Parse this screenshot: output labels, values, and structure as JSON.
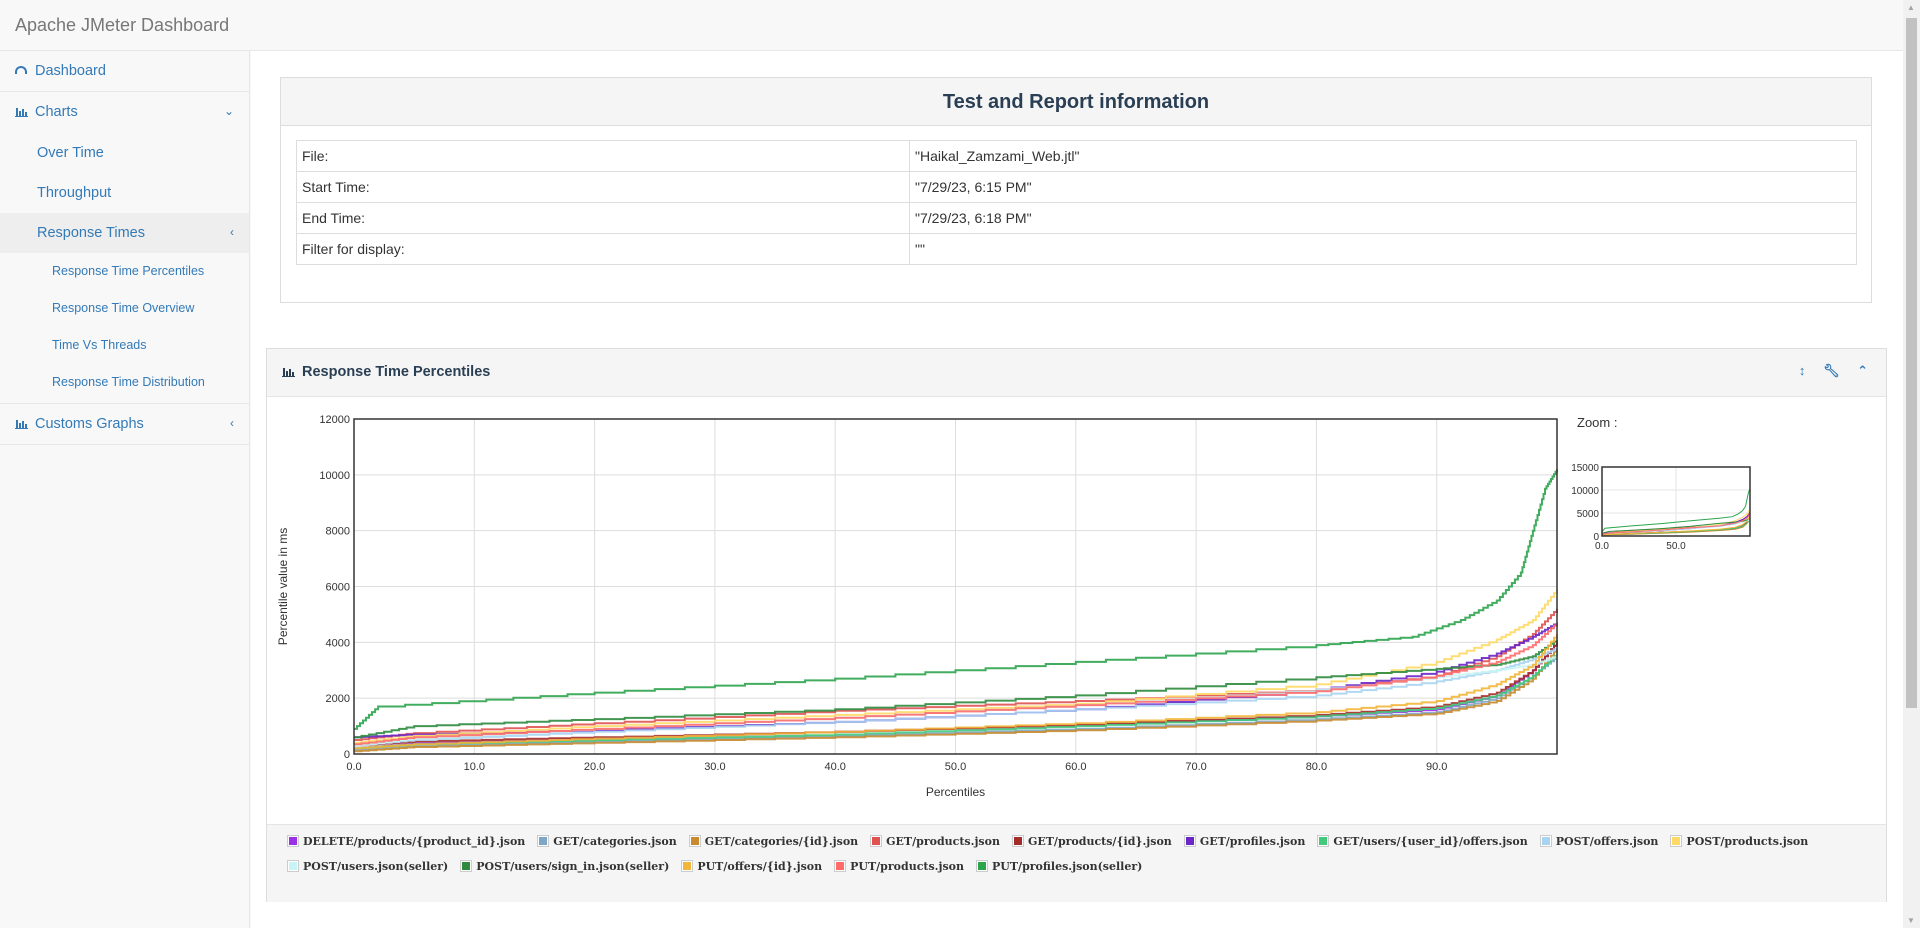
{
  "app": {
    "title": "Apache JMeter Dashboard"
  },
  "sidebar": {
    "items": [
      {
        "label": "Dashboard"
      },
      {
        "label": "Charts"
      },
      {
        "label": "Over Time"
      },
      {
        "label": "Throughput"
      },
      {
        "label": "Response Times"
      },
      {
        "label": "Response Time Percentiles"
      },
      {
        "label": "Response Time Overview"
      },
      {
        "label": "Time Vs Threads"
      },
      {
        "label": "Response Time Distribution"
      },
      {
        "label": "Customs Graphs"
      }
    ]
  },
  "info": {
    "title": "Test and Report information",
    "rows": [
      {
        "label": "File:",
        "value": "\"Haikal_Zamzami_Web.jtl\""
      },
      {
        "label": "Start Time:",
        "value": "\"7/29/23, 6:15 PM\""
      },
      {
        "label": "End Time:",
        "value": "\"7/29/23, 6:18 PM\""
      },
      {
        "label": "Filter for display:",
        "value": "\"\""
      }
    ]
  },
  "percentiles_panel": {
    "title": "Response Time Percentiles",
    "zoom_label": "Zoom :"
  },
  "colors": {
    "accent": "#337ab7",
    "header_text": "#2a3f54"
  },
  "chart_data": {
    "type": "line",
    "xlabel": "Percentiles",
    "ylabel": "Percentile value in ms",
    "xlim": [
      0,
      100
    ],
    "ylim": [
      0,
      12000
    ],
    "x_ticks": [
      "0.0",
      "10.0",
      "20.0",
      "30.0",
      "40.0",
      "50.0",
      "60.0",
      "70.0",
      "80.0",
      "90.0"
    ],
    "y_ticks": [
      "0",
      "2000",
      "4000",
      "6000",
      "8000",
      "10000",
      "12000"
    ],
    "grid": true,
    "legend_position": "bottom",
    "series": [
      {
        "name": "DELETE/products/{product_id}.json",
        "color": "#9b30e6",
        "values": [
          [
            0,
            200
          ],
          [
            5,
            380
          ],
          [
            20,
            550
          ],
          [
            40,
            800
          ],
          [
            60,
            1050
          ],
          [
            80,
            1350
          ],
          [
            90,
            1600
          ],
          [
            95,
            2100
          ],
          [
            98,
            3000
          ],
          [
            100,
            4000
          ]
        ]
      },
      {
        "name": "GET/categories.json",
        "color": "#7ea6c6",
        "values": [
          [
            0,
            150
          ],
          [
            5,
            300
          ],
          [
            20,
            450
          ],
          [
            40,
            650
          ],
          [
            60,
            900
          ],
          [
            80,
            1250
          ],
          [
            90,
            1500
          ],
          [
            95,
            2000
          ],
          [
            98,
            2800
          ],
          [
            100,
            3500
          ]
        ]
      },
      {
        "name": "GET/categories/{id}.json",
        "color": "#c78a2e",
        "values": [
          [
            0,
            100
          ],
          [
            5,
            250
          ],
          [
            20,
            400
          ],
          [
            40,
            600
          ],
          [
            60,
            850
          ],
          [
            80,
            1200
          ],
          [
            90,
            1450
          ],
          [
            95,
            1900
          ],
          [
            98,
            2700
          ],
          [
            100,
            3800
          ]
        ]
      },
      {
        "name": "GET/products.json",
        "color": "#e05252",
        "values": [
          [
            0,
            500
          ],
          [
            5,
            750
          ],
          [
            20,
            1100
          ],
          [
            40,
            1550
          ],
          [
            60,
            1900
          ],
          [
            80,
            2300
          ],
          [
            90,
            2800
          ],
          [
            95,
            3500
          ],
          [
            98,
            4300
          ],
          [
            100,
            5200
          ]
        ]
      },
      {
        "name": "GET/products/{id}.json",
        "color": "#a52a2a",
        "values": [
          [
            0,
            300
          ],
          [
            5,
            450
          ],
          [
            20,
            600
          ],
          [
            40,
            800
          ],
          [
            60,
            1050
          ],
          [
            80,
            1400
          ],
          [
            90,
            1700
          ],
          [
            95,
            2200
          ],
          [
            98,
            3000
          ],
          [
            100,
            4000
          ]
        ]
      },
      {
        "name": "GET/profiles.json",
        "color": "#6a26c7",
        "values": [
          [
            0,
            600
          ],
          [
            5,
            700
          ],
          [
            20,
            850
          ],
          [
            40,
            1150
          ],
          [
            60,
            1600
          ],
          [
            80,
            2300
          ],
          [
            90,
            2950
          ],
          [
            95,
            3600
          ],
          [
            98,
            4200
          ],
          [
            100,
            4700
          ]
        ]
      },
      {
        "name": "GET/users/{user_id}/offers.json",
        "color": "#42c97a",
        "values": [
          [
            0,
            200
          ],
          [
            5,
            350
          ],
          [
            20,
            500
          ],
          [
            40,
            700
          ],
          [
            60,
            1000
          ],
          [
            80,
            1350
          ],
          [
            90,
            1650
          ],
          [
            95,
            2100
          ],
          [
            98,
            2800
          ],
          [
            100,
            3600
          ]
        ]
      },
      {
        "name": "POST/offers.json",
        "color": "#a8d4f2",
        "values": [
          [
            0,
            300
          ],
          [
            5,
            500
          ],
          [
            20,
            800
          ],
          [
            40,
            1150
          ],
          [
            60,
            1600
          ],
          [
            80,
            2100
          ],
          [
            90,
            2600
          ],
          [
            95,
            3000
          ],
          [
            98,
            3400
          ],
          [
            100,
            3800
          ]
        ]
      },
      {
        "name": "POST/products.json",
        "color": "#ffd966",
        "values": [
          [
            0,
            400
          ],
          [
            5,
            650
          ],
          [
            20,
            1000
          ],
          [
            40,
            1400
          ],
          [
            60,
            1800
          ],
          [
            80,
            2500
          ],
          [
            90,
            3300
          ],
          [
            95,
            4100
          ],
          [
            98,
            4800
          ],
          [
            100,
            5900
          ]
        ]
      },
      {
        "name": "POST/users.json(seller)",
        "color": "#c9f4f4",
        "values": [
          [
            0,
            300
          ],
          [
            5,
            550
          ],
          [
            20,
            900
          ],
          [
            40,
            1300
          ],
          [
            60,
            1750
          ],
          [
            80,
            2300
          ],
          [
            90,
            2750
          ],
          [
            95,
            3000
          ],
          [
            98,
            3200
          ],
          [
            100,
            3500
          ]
        ]
      },
      {
        "name": "POST/users/sign_in.json(seller)",
        "color": "#2e8b3e",
        "values": [
          [
            0,
            600
          ],
          [
            5,
            1000
          ],
          [
            20,
            1250
          ],
          [
            40,
            1600
          ],
          [
            60,
            2100
          ],
          [
            80,
            2750
          ],
          [
            90,
            3050
          ],
          [
            95,
            3200
          ],
          [
            98,
            3500
          ],
          [
            100,
            4100
          ]
        ]
      },
      {
        "name": "PUT/offers/{id}.json",
        "color": "#f2b638",
        "values": [
          [
            0,
            200
          ],
          [
            5,
            350
          ],
          [
            20,
            550
          ],
          [
            40,
            800
          ],
          [
            60,
            1100
          ],
          [
            80,
            1500
          ],
          [
            90,
            1900
          ],
          [
            95,
            2500
          ],
          [
            98,
            3200
          ],
          [
            100,
            4300
          ]
        ]
      },
      {
        "name": "PUT/products.json",
        "color": "#ff6b6b",
        "values": [
          [
            0,
            350
          ],
          [
            5,
            600
          ],
          [
            20,
            900
          ],
          [
            40,
            1300
          ],
          [
            60,
            1750
          ],
          [
            80,
            2250
          ],
          [
            90,
            2800
          ],
          [
            95,
            3300
          ],
          [
            98,
            3900
          ],
          [
            100,
            4700
          ]
        ]
      },
      {
        "name": "PUT/profiles.json(seller)",
        "color": "#2da44e",
        "values": [
          [
            0,
            900
          ],
          [
            2,
            1700
          ],
          [
            20,
            2200
          ],
          [
            40,
            2700
          ],
          [
            60,
            3300
          ],
          [
            80,
            3900
          ],
          [
            88,
            4200
          ],
          [
            92,
            4800
          ],
          [
            95,
            5500
          ],
          [
            97,
            6500
          ],
          [
            98,
            8000
          ],
          [
            99,
            9500
          ],
          [
            100,
            10200
          ]
        ]
      }
    ]
  },
  "zoom_chart": {
    "y_ticks": [
      "15000",
      "10000",
      "5000",
      "0"
    ],
    "x_ticks": [
      "0.0",
      "50.0"
    ],
    "ylim": [
      0,
      15000
    ]
  }
}
